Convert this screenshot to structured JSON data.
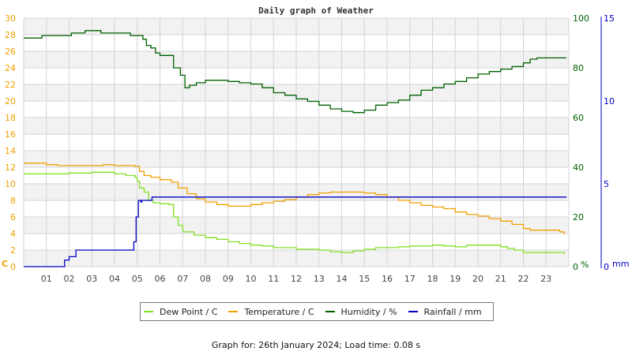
{
  "chart_data": {
    "type": "line",
    "title": "Daily graph of Weather",
    "xlabel": "",
    "x_ticks": [
      "01",
      "02",
      "03",
      "04",
      "05",
      "06",
      "07",
      "08",
      "09",
      "10",
      "11",
      "12",
      "13",
      "14",
      "15",
      "16",
      "17",
      "18",
      "19",
      "20",
      "21",
      "22",
      "23"
    ],
    "x_range_hours": [
      0,
      24
    ],
    "axes": {
      "left": {
        "label": "C",
        "range": [
          0,
          30
        ],
        "ticks": [
          0,
          2,
          4,
          6,
          8,
          10,
          12,
          14,
          16,
          18,
          20,
          22,
          24,
          26,
          28,
          30
        ],
        "color": "#f0a000"
      },
      "humidity": {
        "label": "%",
        "range": [
          0,
          100
        ],
        "ticks": [
          0,
          20,
          40,
          60,
          80,
          100
        ],
        "color": "#006000"
      },
      "rainfall": {
        "label": "mm",
        "range": [
          0,
          15
        ],
        "ticks": [
          0,
          5,
          10,
          15
        ],
        "color": "#0000c0"
      }
    },
    "grid": true,
    "legend_position": "bottom",
    "series": [
      {
        "name": "Dew Point / C",
        "axis": "left",
        "color": "#80e020",
        "points": [
          [
            0,
            11.2
          ],
          [
            1,
            11.2
          ],
          [
            1.5,
            11.2
          ],
          [
            2,
            11.3
          ],
          [
            3,
            11.4
          ],
          [
            3.5,
            11.4
          ],
          [
            4,
            11.2
          ],
          [
            4.5,
            11.0
          ],
          [
            4.9,
            10.8
          ],
          [
            5.0,
            10.3
          ],
          [
            5.1,
            9.5
          ],
          [
            5.3,
            9.0
          ],
          [
            5.5,
            8.0
          ],
          [
            5.7,
            7.7
          ],
          [
            6.0,
            7.6
          ],
          [
            6.4,
            7.5
          ],
          [
            6.6,
            6.0
          ],
          [
            6.8,
            5.0
          ],
          [
            7.0,
            4.2
          ],
          [
            7.5,
            3.8
          ],
          [
            8,
            3.5
          ],
          [
            8.5,
            3.3
          ],
          [
            9,
            3.0
          ],
          [
            9.5,
            2.8
          ],
          [
            10,
            2.6
          ],
          [
            10.5,
            2.5
          ],
          [
            11,
            2.3
          ],
          [
            11.5,
            2.3
          ],
          [
            12,
            2.1
          ],
          [
            12.5,
            2.1
          ],
          [
            13,
            2.0
          ],
          [
            13.5,
            1.8
          ],
          [
            14,
            1.7
          ],
          [
            14.5,
            1.9
          ],
          [
            15,
            2.1
          ],
          [
            15.5,
            2.3
          ],
          [
            16,
            2.3
          ],
          [
            16.5,
            2.4
          ],
          [
            17,
            2.5
          ],
          [
            17.5,
            2.5
          ],
          [
            18,
            2.6
          ],
          [
            18.5,
            2.5
          ],
          [
            19,
            2.4
          ],
          [
            19.5,
            2.6
          ],
          [
            20,
            2.6
          ],
          [
            20.5,
            2.6
          ],
          [
            21,
            2.4
          ],
          [
            21.3,
            2.2
          ],
          [
            21.6,
            2.0
          ],
          [
            22,
            1.7
          ],
          [
            22.5,
            1.7
          ],
          [
            23,
            1.7
          ],
          [
            23.5,
            1.7
          ],
          [
            23.8,
            1.5
          ]
        ]
      },
      {
        "name": "Temperature / C",
        "axis": "left",
        "color": "#f0a000",
        "points": [
          [
            0,
            12.5
          ],
          [
            0.5,
            12.5
          ],
          [
            1,
            12.3
          ],
          [
            1.5,
            12.2
          ],
          [
            2,
            12.2
          ],
          [
            2.5,
            12.2
          ],
          [
            3,
            12.2
          ],
          [
            3.5,
            12.3
          ],
          [
            4,
            12.2
          ],
          [
            4.5,
            12.2
          ],
          [
            4.9,
            12.1
          ],
          [
            5.1,
            11.5
          ],
          [
            5.3,
            11.0
          ],
          [
            5.6,
            10.8
          ],
          [
            6.0,
            10.5
          ],
          [
            6.5,
            10.2
          ],
          [
            6.8,
            9.5
          ],
          [
            7.2,
            8.8
          ],
          [
            7.6,
            8.2
          ],
          [
            8,
            7.8
          ],
          [
            8.5,
            7.5
          ],
          [
            9,
            7.3
          ],
          [
            9.5,
            7.3
          ],
          [
            10,
            7.5
          ],
          [
            10.5,
            7.7
          ],
          [
            11,
            7.9
          ],
          [
            11.5,
            8.1
          ],
          [
            12,
            8.4
          ],
          [
            12.5,
            8.7
          ],
          [
            13,
            8.9
          ],
          [
            13.5,
            9.0
          ],
          [
            14,
            9.0
          ],
          [
            14.5,
            9.0
          ],
          [
            15,
            8.9
          ],
          [
            15.5,
            8.7
          ],
          [
            16,
            8.4
          ],
          [
            16.5,
            8.0
          ],
          [
            17,
            7.7
          ],
          [
            17.5,
            7.4
          ],
          [
            18,
            7.2
          ],
          [
            18.5,
            7.0
          ],
          [
            19,
            6.6
          ],
          [
            19.5,
            6.3
          ],
          [
            20,
            6.1
          ],
          [
            20.5,
            5.8
          ],
          [
            21,
            5.5
          ],
          [
            21.5,
            5.1
          ],
          [
            22,
            4.6
          ],
          [
            22.3,
            4.4
          ],
          [
            22.8,
            4.4
          ],
          [
            23.3,
            4.4
          ],
          [
            23.6,
            4.2
          ],
          [
            23.8,
            3.9
          ]
        ]
      },
      {
        "name": "Humidity / %",
        "axis": "humidity",
        "color": "#006000",
        "points": [
          [
            0,
            92.0
          ],
          [
            0.7,
            92.0
          ],
          [
            0.8,
            93.0
          ],
          [
            2.0,
            93.0
          ],
          [
            2.1,
            94.0
          ],
          [
            2.6,
            94.0
          ],
          [
            2.7,
            95.0
          ],
          [
            3.3,
            95.0
          ],
          [
            3.4,
            94.0
          ],
          [
            4.6,
            94.0
          ],
          [
            4.7,
            93.0
          ],
          [
            5.2,
            93.0
          ],
          [
            5.25,
            91.5
          ],
          [
            5.4,
            89.0
          ],
          [
            5.6,
            88.0
          ],
          [
            5.8,
            86.0
          ],
          [
            6.0,
            85.0
          ],
          [
            6.5,
            85.0
          ],
          [
            6.6,
            80.0
          ],
          [
            6.9,
            77.0
          ],
          [
            7.1,
            72.0
          ],
          [
            7.3,
            73.0
          ],
          [
            7.6,
            74.0
          ],
          [
            8.0,
            75.0
          ],
          [
            8.8,
            75.0
          ],
          [
            9.0,
            74.5
          ],
          [
            9.5,
            74.0
          ],
          [
            10,
            73.5
          ],
          [
            10.5,
            72.0
          ],
          [
            11,
            70.0
          ],
          [
            11.5,
            69.0
          ],
          [
            12,
            67.5
          ],
          [
            12.5,
            66.5
          ],
          [
            13,
            65.0
          ],
          [
            13.5,
            63.5
          ],
          [
            14,
            62.5
          ],
          [
            14.5,
            62.0
          ],
          [
            15,
            63.0
          ],
          [
            15.5,
            65.0
          ],
          [
            16,
            66.0
          ],
          [
            16.5,
            67.0
          ],
          [
            17,
            69.0
          ],
          [
            17.5,
            71.0
          ],
          [
            18,
            72.0
          ],
          [
            18.5,
            73.5
          ],
          [
            19,
            74.5
          ],
          [
            19.5,
            76.0
          ],
          [
            20,
            77.5
          ],
          [
            20.5,
            78.5
          ],
          [
            21,
            79.5
          ],
          [
            21.5,
            80.5
          ],
          [
            22,
            82.0
          ],
          [
            22.3,
            83.5
          ],
          [
            22.6,
            84.0
          ],
          [
            23,
            84.0
          ],
          [
            23.9,
            84.0
          ]
        ]
      },
      {
        "name": "Rainfall / mm",
        "axis": "rainfall",
        "color": "#0000c0",
        "points": [
          [
            0,
            0
          ],
          [
            1.75,
            0
          ],
          [
            1.8,
            0.4
          ],
          [
            2.0,
            0.6
          ],
          [
            2.2,
            0.6
          ],
          [
            2.3,
            1.0
          ],
          [
            4.75,
            1.0
          ],
          [
            4.85,
            1.5
          ],
          [
            4.95,
            3.0
          ],
          [
            5.05,
            4.0
          ],
          [
            5.15,
            3.9
          ],
          [
            5.2,
            4.0
          ],
          [
            5.6,
            4.0
          ],
          [
            5.65,
            4.2
          ],
          [
            23.9,
            4.2
          ]
        ]
      }
    ]
  },
  "legend": {
    "items": [
      {
        "label": "Dew Point / C",
        "color": "#80e020"
      },
      {
        "label": "Temperature / C",
        "color": "#f0a000"
      },
      {
        "label": "Humidity / %",
        "color": "#006000"
      },
      {
        "label": "Rainfall / mm",
        "color": "#0000c0"
      }
    ]
  },
  "footer": {
    "text": "Graph for: 26th January 2024; Load time: 0.08 s"
  }
}
